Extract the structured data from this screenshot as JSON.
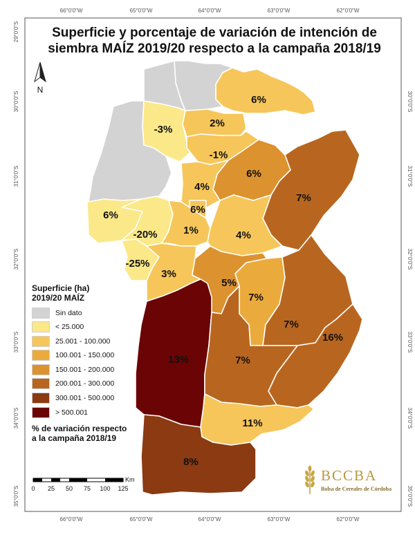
{
  "title_lines": [
    "Superficie y porcentaje de variación de intención de",
    "siembra MAÍZ 2019/20 respecto a la campaña 2018/19"
  ],
  "graticule": {
    "lon_labels": [
      "66°0'0\"W",
      "65°0'0\"W",
      "64°0'0\"W",
      "63°0'0\"W",
      "62°0'0\"W"
    ],
    "lat_labels": [
      "29°0'0\"S",
      "30°0'0\"S",
      "31°0'0\"S",
      "32°0'0\"S",
      "33°0'0\"S",
      "34°0'0\"S",
      "35°0'0\"S"
    ]
  },
  "north_label": "N",
  "legend": {
    "title_lines": [
      "Superficie (ha)",
      "2019/20 MAÍZ"
    ],
    "classes": [
      {
        "label": "Sin dato",
        "color": "#d3d3d3"
      },
      {
        "label": "< 25.000",
        "color": "#fbe889"
      },
      {
        "label": "25.001 - 100.000",
        "color": "#f6c65a"
      },
      {
        "label": "100.001 - 150.000",
        "color": "#ebab3c"
      },
      {
        "label": "150.001 - 200.000",
        "color": "#dc922f"
      },
      {
        "label": "200.001 - 300.000",
        "color": "#b8661f"
      },
      {
        "label": "300.001 - 500.000",
        "color": "#8b3a12"
      },
      {
        "label": "> 500.001",
        "color": "#6b0404"
      }
    ],
    "note_lines": [
      "% de variación respecto",
      "a la campaña 2018/19"
    ]
  },
  "scale_bar": {
    "unit": "Km",
    "ticks": [
      "0",
      "25",
      "50",
      "75",
      "100",
      "125"
    ]
  },
  "logo": {
    "text": "BCCBA",
    "subtitle": "Bolsa de Cereales de Córdoba"
  },
  "departments": [
    {
      "label": "6%",
      "class": 2
    },
    {
      "label": "-3%",
      "class": 1
    },
    {
      "label": "2%",
      "class": 2
    },
    {
      "label": "-1%",
      "class": 2
    },
    {
      "label": "6%",
      "class": 4
    },
    {
      "label": "7%",
      "class": 5
    },
    {
      "label": "4%",
      "class": 2
    },
    {
      "label": "6%",
      "class": 2
    },
    {
      "label": "6%",
      "class": 1
    },
    {
      "label": "-20%",
      "class": 1
    },
    {
      "label": "1%",
      "class": 2
    },
    {
      "label": "4%",
      "class": 2
    },
    {
      "label": "-25%",
      "class": 1
    },
    {
      "label": "3%",
      "class": 2
    },
    {
      "label": "5%",
      "class": 4
    },
    {
      "label": "7%",
      "class": 3
    },
    {
      "label": "7%",
      "class": 5
    },
    {
      "label": "16%",
      "class": 5
    },
    {
      "label": "13%",
      "class": 7
    },
    {
      "label": "7%",
      "class": 5
    },
    {
      "label": "11%",
      "class": 2
    },
    {
      "label": "8%",
      "class": 6
    },
    {
      "label": "",
      "class": 0
    },
    {
      "label": "",
      "class": 0
    },
    {
      "label": "",
      "class": 0
    }
  ]
}
